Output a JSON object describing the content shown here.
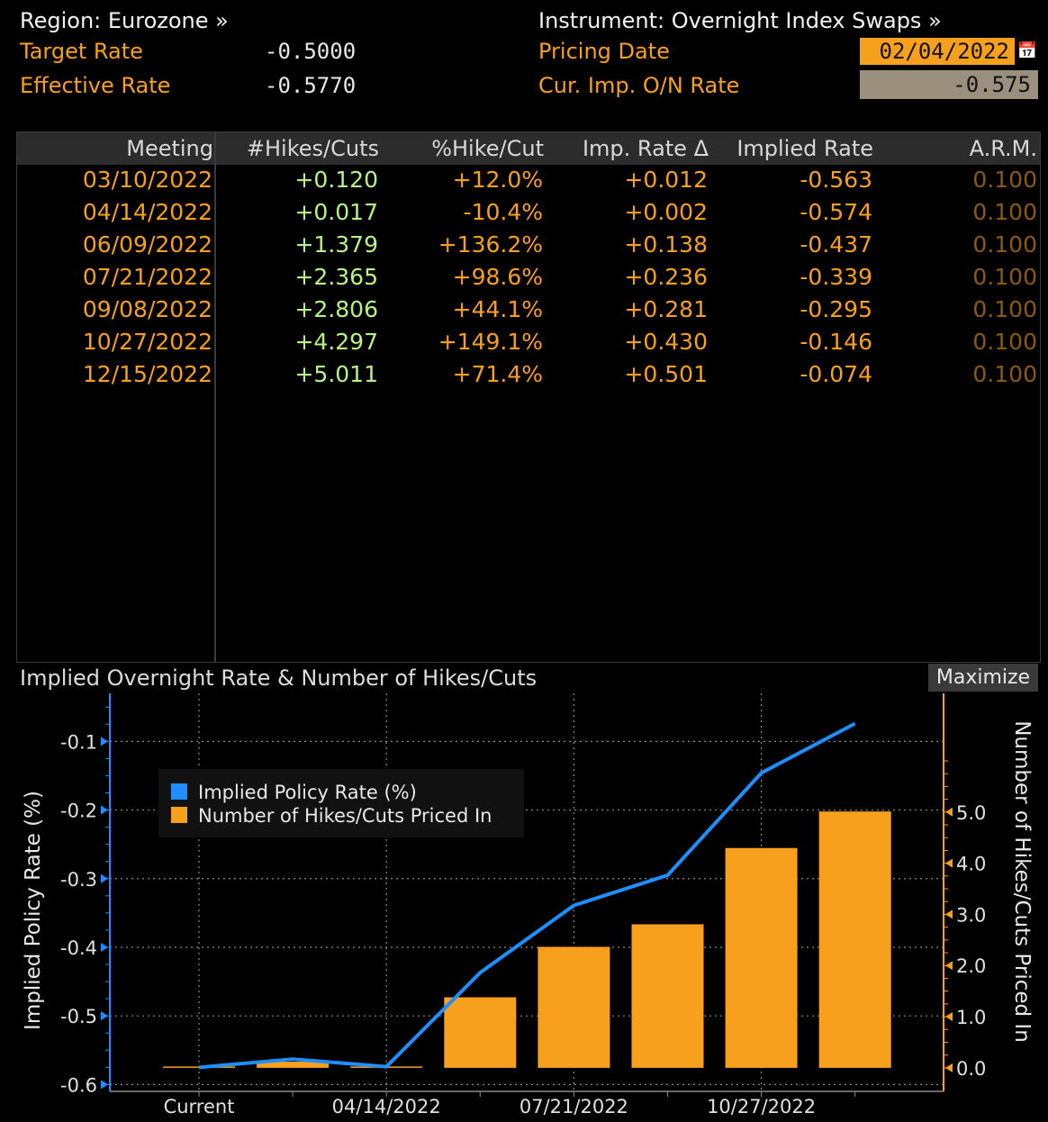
{
  "header": {
    "region_label": "Region: Eurozone »",
    "instrument_label": "Instrument: Overnight Index Swaps »",
    "target_rate_label": "Target Rate",
    "target_rate_value": "-0.5000",
    "effective_rate_label": "Effective Rate",
    "effective_rate_value": "-0.5770",
    "pricing_date_label": "Pricing Date",
    "pricing_date_value": "02/04/2022",
    "cur_imp_label": "Cur. Imp. O/N Rate",
    "cur_imp_value": "-0.575",
    "calendar_icon": "calendar-icon"
  },
  "table": {
    "columns": [
      "Meeting",
      "#Hikes/Cuts",
      "%Hike/Cut",
      "Imp. Rate Δ",
      "Implied Rate",
      "A.R.M."
    ],
    "rows": [
      {
        "meeting": "03/10/2022",
        "hikes": "+0.120",
        "pct": "+12.0%",
        "delta": "+0.012",
        "implied": "-0.563",
        "arm": "0.100"
      },
      {
        "meeting": "04/14/2022",
        "hikes": "+0.017",
        "pct": "-10.4%",
        "delta": "+0.002",
        "implied": "-0.574",
        "arm": "0.100"
      },
      {
        "meeting": "06/09/2022",
        "hikes": "+1.379",
        "pct": "+136.2%",
        "delta": "+0.138",
        "implied": "-0.437",
        "arm": "0.100"
      },
      {
        "meeting": "07/21/2022",
        "hikes": "+2.365",
        "pct": "+98.6%",
        "delta": "+0.236",
        "implied": "-0.339",
        "arm": "0.100"
      },
      {
        "meeting": "09/08/2022",
        "hikes": "+2.806",
        "pct": "+44.1%",
        "delta": "+0.281",
        "implied": "-0.295",
        "arm": "0.100"
      },
      {
        "meeting": "10/27/2022",
        "hikes": "+4.297",
        "pct": "+149.1%",
        "delta": "+0.430",
        "implied": "-0.146",
        "arm": "0.100"
      },
      {
        "meeting": "12/15/2022",
        "hikes": "+5.011",
        "pct": "+71.4%",
        "delta": "+0.501",
        "implied": "-0.074",
        "arm": "0.100"
      }
    ]
  },
  "chart_panel": {
    "title": "Implied Overnight Rate & Number of Hikes/Cuts",
    "maximize_label": "Maximize"
  },
  "chart_data": {
    "type": "bar",
    "categories": [
      "Current",
      "03/10/2022",
      "04/14/2022",
      "06/09/2022",
      "07/21/2022",
      "09/08/2022",
      "10/27/2022",
      "12/15/2022"
    ],
    "x_tick_labels": [
      "Current",
      "04/14/2022",
      "07/21/2022",
      "10/27/2022"
    ],
    "series": [
      {
        "name": "Implied Policy Rate (%)",
        "type": "line",
        "axis": "left",
        "color": "#1f8fff",
        "values": [
          -0.575,
          -0.563,
          -0.574,
          -0.437,
          -0.339,
          -0.295,
          -0.146,
          -0.074
        ]
      },
      {
        "name": "Number of Hikes/Cuts Priced In",
        "type": "bar",
        "axis": "right",
        "color": "#f7a01e",
        "values": [
          0,
          0.12,
          0.017,
          1.379,
          2.365,
          2.806,
          4.297,
          5.011
        ]
      }
    ],
    "ylabel_left": "Implied Policy Rate (%)",
    "ylabel_right": "Number of Hikes/Cuts Priced In",
    "yticks_left": [
      -0.1,
      -0.2,
      -0.3,
      -0.4,
      -0.5,
      -0.6
    ],
    "ytick_labels_left": [
      "-0.1",
      "-0.2",
      "-0.3",
      "-0.4",
      "-0.5",
      "-0.6"
    ],
    "yticks_right": [
      5,
      4,
      3,
      2,
      1,
      0
    ],
    "ytick_labels_right": [
      "5.0",
      "4.0",
      "3.0",
      "2.0",
      "1.0",
      "0.0"
    ],
    "ylim_left": [
      -0.61,
      -0.03
    ],
    "ylim_right": [
      -0.46,
      7.32
    ],
    "grid": true,
    "legend_position": "top-left"
  }
}
